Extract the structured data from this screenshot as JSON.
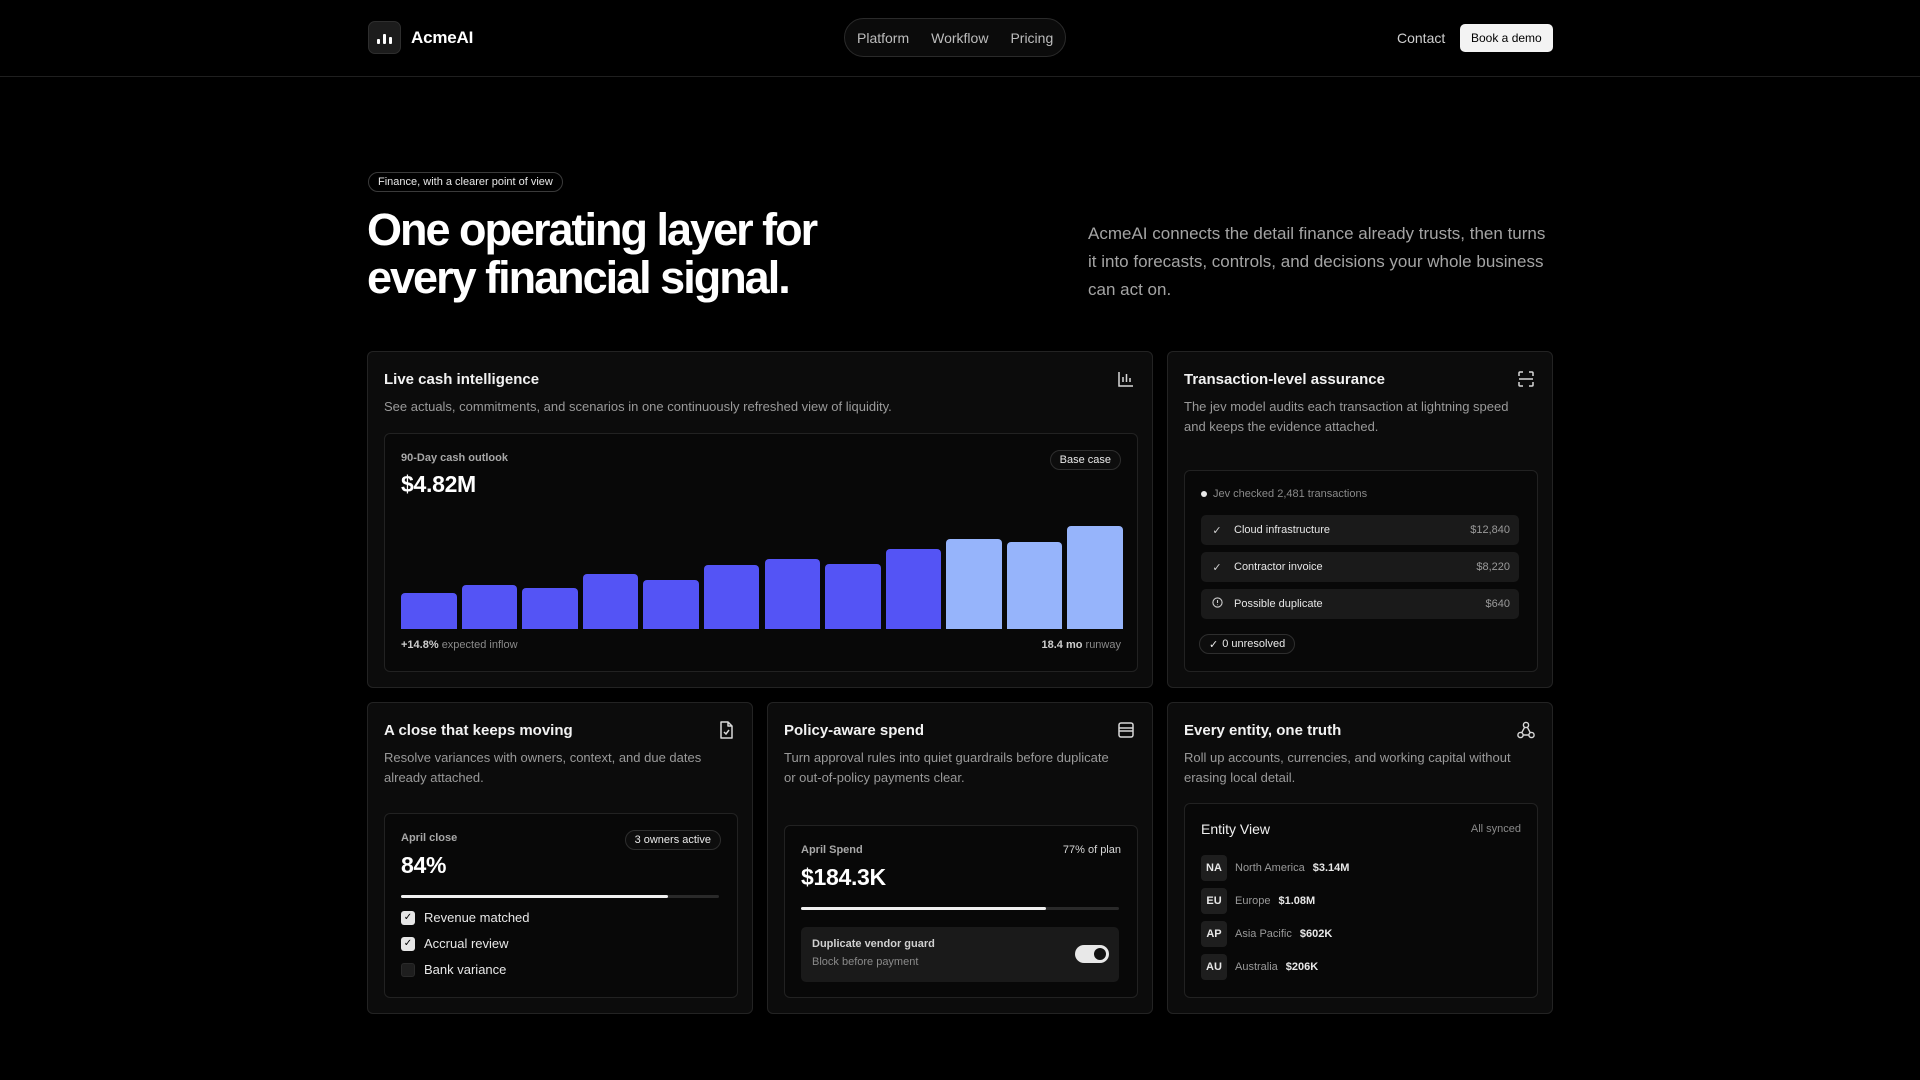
{
  "header": {
    "brand": "AcmeAI",
    "nav": [
      "Platform",
      "Workflow",
      "Pricing"
    ],
    "contact": "Contact",
    "cta": "Book a demo"
  },
  "hero": {
    "eyebrow": "Finance, with a clearer point of view",
    "title_line1": "One operating layer for",
    "title_line2": "every financial signal.",
    "description": "AcmeAI connects the detail finance already trusts, then turns it into forecasts, controls, and decisions your whole business can act on."
  },
  "cash": {
    "title": "Live cash intelligence",
    "description": "See actuals, commitments, and scenarios in one continuously refreshed view of liquidity.",
    "outlook_label": "90-Day cash outlook",
    "outlook_value": "$4.82M",
    "scenario_tag": "Base case",
    "inflow_value": "+14.8%",
    "inflow_label": "expected inflow",
    "runway_value": "18.4 mo",
    "runway_label": "runway",
    "icon": "bar-chart-icon"
  },
  "chart_data": {
    "type": "bar",
    "title": "90-Day cash outlook",
    "values": [
      34,
      41,
      38,
      51,
      46,
      60,
      65,
      61,
      75,
      84,
      81,
      96
    ],
    "projected_from_index": 9,
    "colors": {
      "actual": "#5454f5",
      "projected": "#96b4fb"
    },
    "ylim": [
      0,
      100
    ]
  },
  "assurance": {
    "title": "Transaction-level assurance",
    "description": "The jev model audits each transaction at lightning speed and keeps the evidence attached.",
    "status": "Jev checked 2,481 transactions",
    "rows": [
      {
        "icon": "check-icon",
        "label": "Cloud infrastructure",
        "amount": "$12,840"
      },
      {
        "icon": "check-icon",
        "label": "Contractor invoice",
        "amount": "$8,220"
      },
      {
        "icon": "alert-circle-icon",
        "label": "Possible duplicate",
        "amount": "$640"
      }
    ],
    "unresolved": "0 unresolved",
    "icon": "scan-icon"
  },
  "close": {
    "title": "A close that keeps moving",
    "description": "Resolve variances with owners, context, and due dates already attached.",
    "label": "April close",
    "owners_tag": "3 owners active",
    "progress_text": "84%",
    "progress": 0.84,
    "checklist": [
      {
        "label": "Revenue matched",
        "checked": true
      },
      {
        "label": "Accrual review",
        "checked": true
      },
      {
        "label": "Bank variance",
        "checked": false
      }
    ],
    "icon": "document-icon"
  },
  "spend": {
    "title": "Policy-aware spend",
    "description": "Turn approval rules into quiet guardrails before duplicate or out-of-policy payments clear.",
    "label": "April Spend",
    "value": "$184.3K",
    "plan_text": "77% of plan",
    "progress": 0.77,
    "guard_title": "Duplicate vendor guard",
    "guard_subtitle": "Block before payment",
    "guard_enabled": true,
    "icon": "wallet-icon"
  },
  "entity": {
    "title": "Every entity, one truth",
    "description": "Roll up accounts, currencies, and working capital without erasing local detail.",
    "view_title": "Entity View",
    "sync_status": "All synced",
    "rows": [
      {
        "code": "NA",
        "name": "North America",
        "value": "$3.14M"
      },
      {
        "code": "EU",
        "name": "Europe",
        "value": "$1.08M"
      },
      {
        "code": "AP",
        "name": "Asia Pacific",
        "value": "$602K"
      },
      {
        "code": "AU",
        "name": "Australia",
        "value": "$206K"
      }
    ],
    "icon": "hierarchy-icon"
  }
}
